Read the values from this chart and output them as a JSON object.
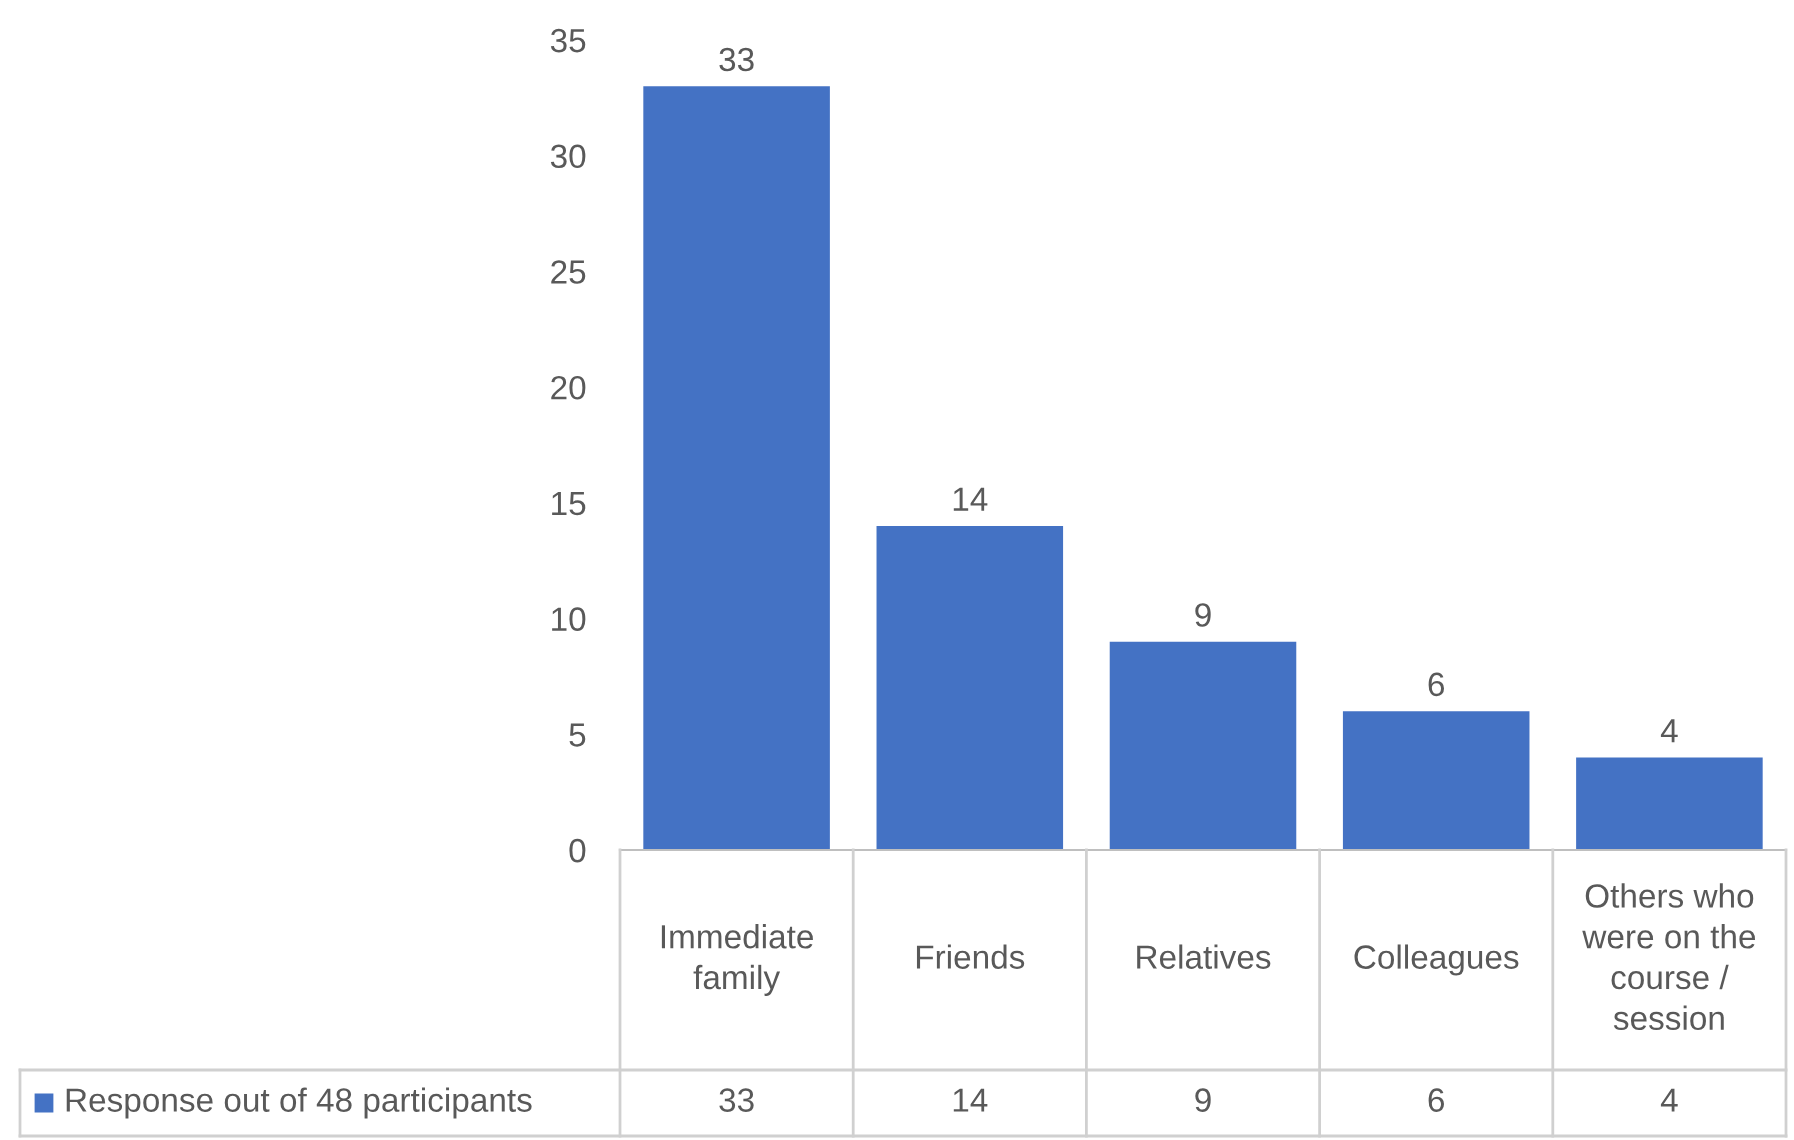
{
  "chart_data": {
    "type": "bar",
    "categories": [
      "Immediate family",
      "Friends",
      "Relatives",
      "Colleagues",
      "Others who were on the course / session"
    ],
    "series": [
      {
        "name": "Response out of 48 participants",
        "color": "#4472c4",
        "values": [
          33,
          14,
          9,
          6,
          4
        ]
      }
    ],
    "annotations": [
      "33",
      "14",
      "9",
      "6",
      "4"
    ],
    "ylim": [
      0,
      35
    ],
    "yticks": [
      0,
      5,
      10,
      15,
      20,
      25,
      30,
      35
    ],
    "data_labels": true,
    "grid": false,
    "legend": "bottom"
  }
}
